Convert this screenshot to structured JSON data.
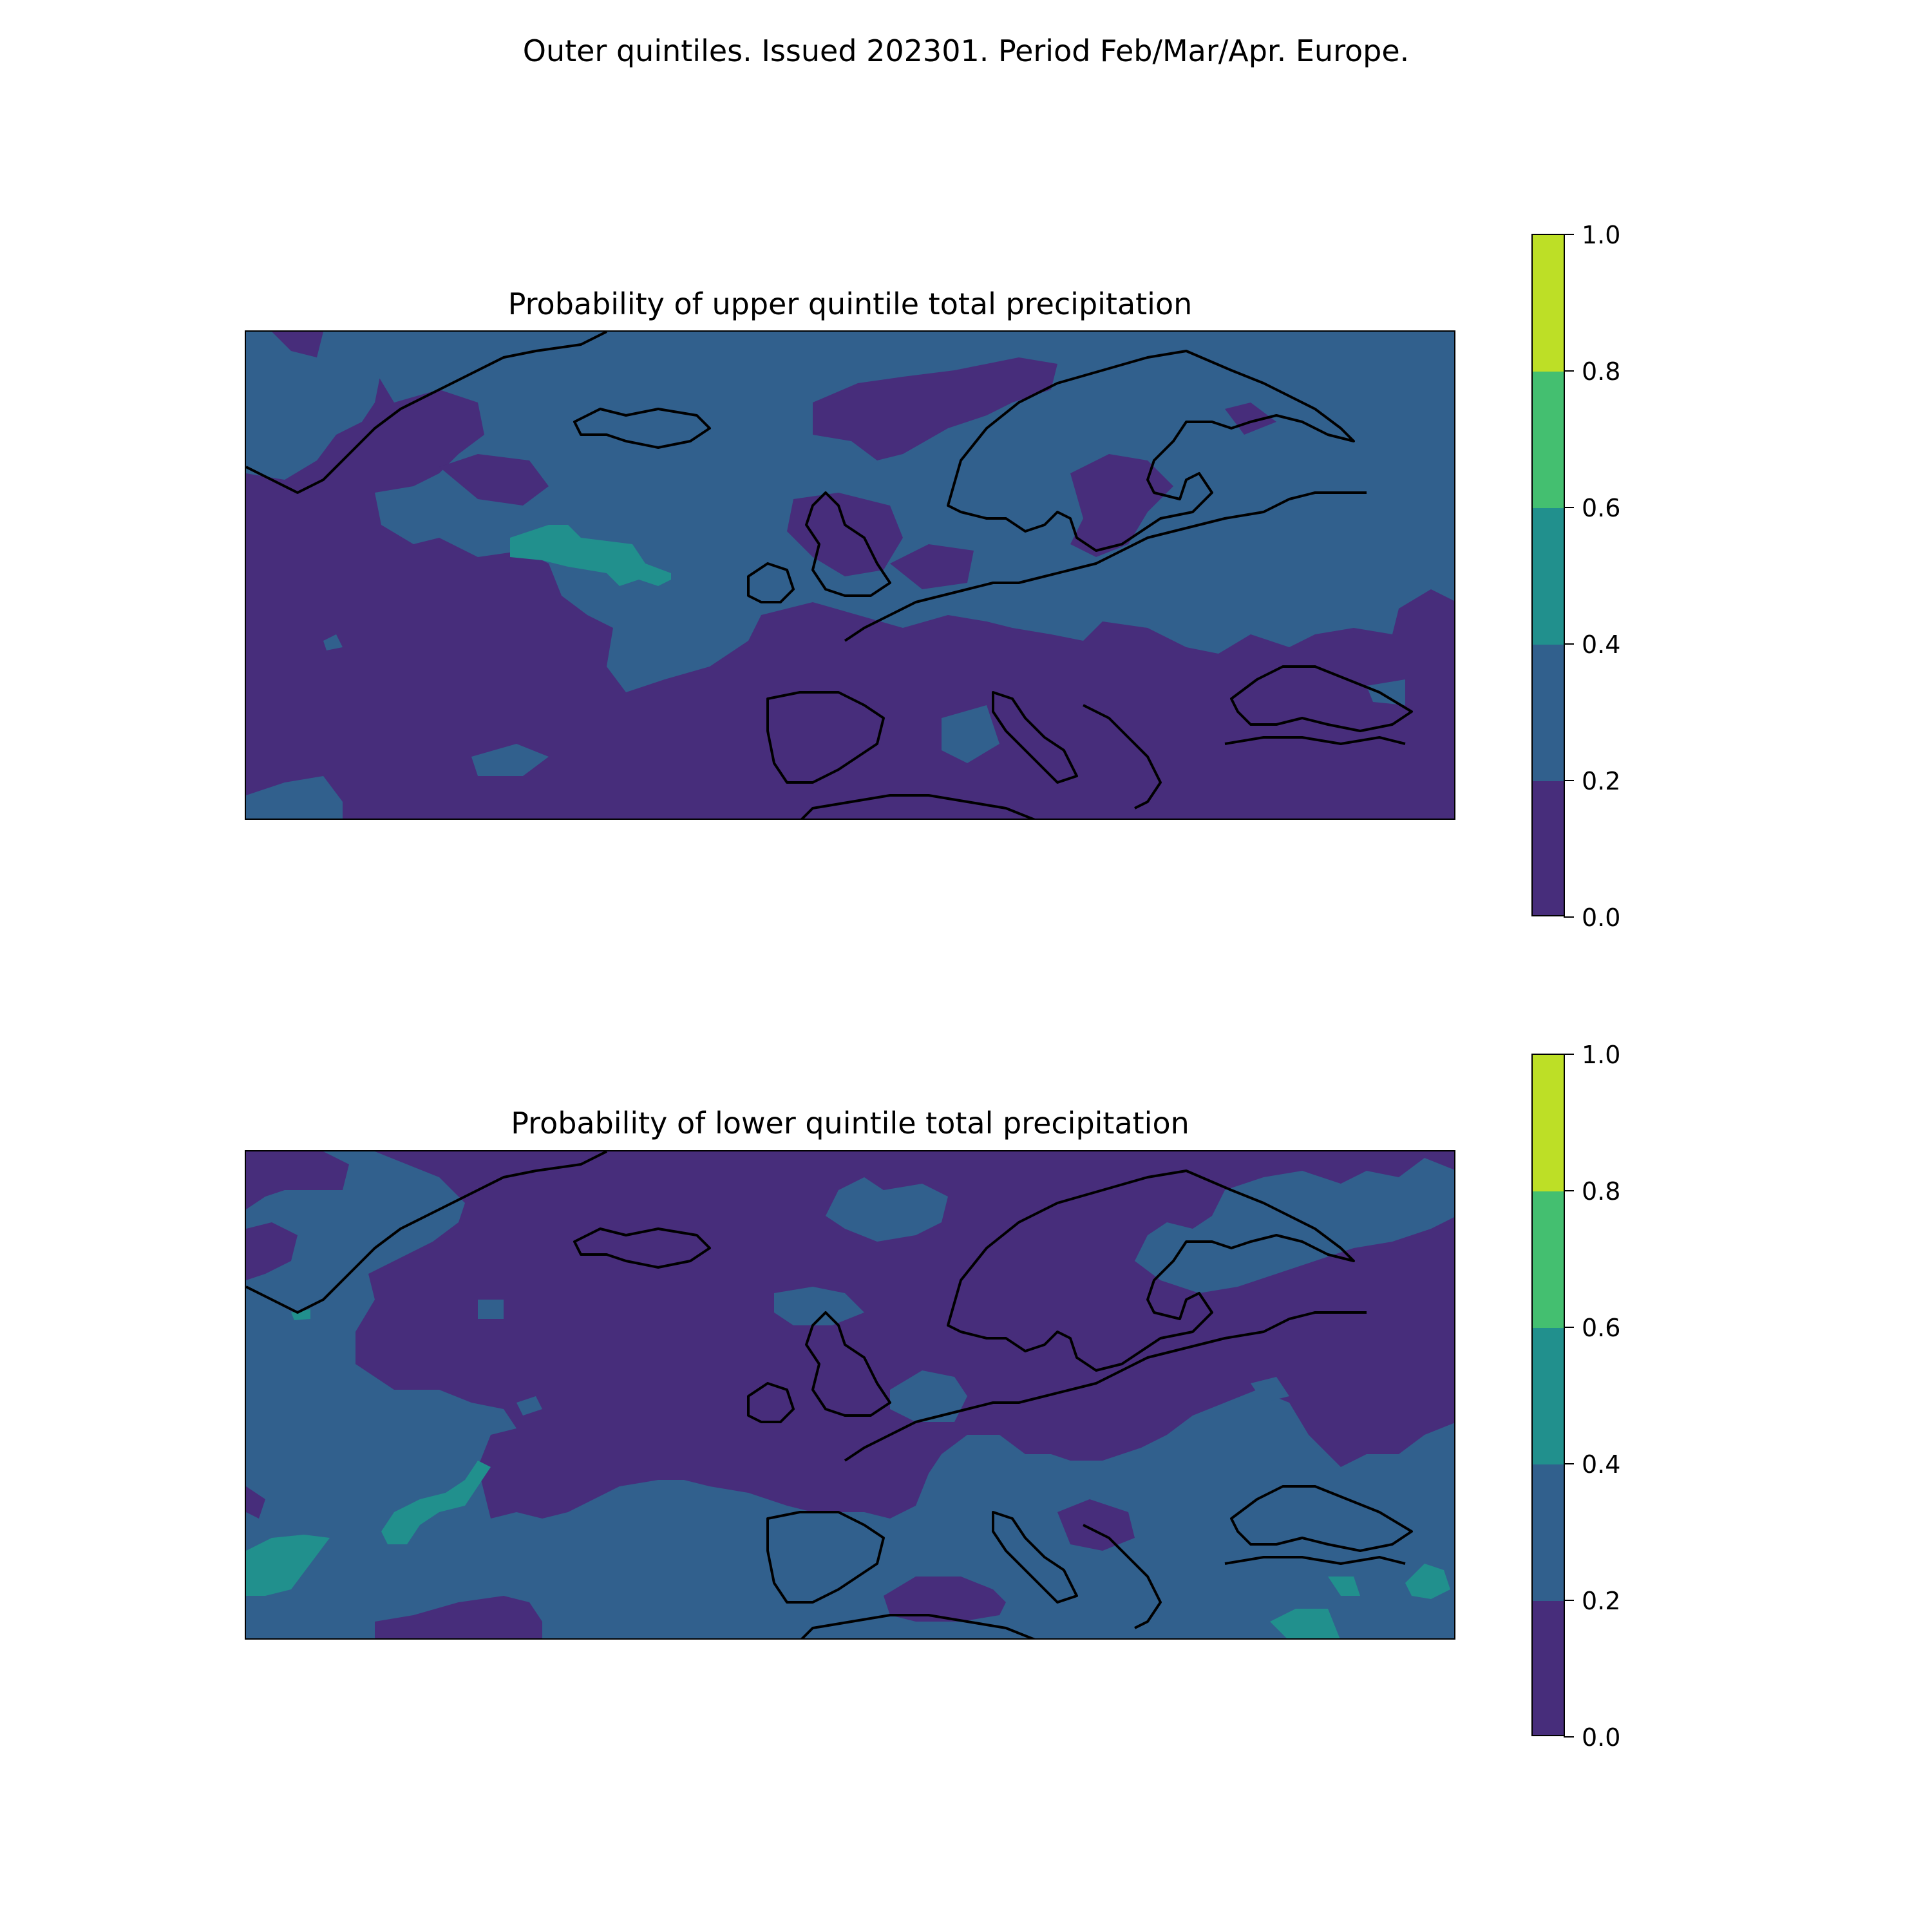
{
  "suptitle": "Outer quintiles. Issued 202301. Period Feb/Mar/Apr. Europe.",
  "colors": {
    "0.0-0.2": "#472d7b",
    "0.2-0.4": "#31608d",
    "0.4-0.6": "#21908d",
    "0.6-0.8": "#44bf70",
    "0.8-1.0": "#bddf26"
  },
  "colorbar": {
    "levels": [
      0.0,
      0.2,
      0.4,
      0.6,
      0.8,
      1.0
    ],
    "tick_labels": [
      "0.0",
      "0.2",
      "0.4",
      "0.6",
      "0.8",
      "1.0"
    ],
    "colors": [
      "#472d7b",
      "#31608d",
      "#21908d",
      "#44bf70",
      "#bddf26"
    ]
  },
  "panels": [
    {
      "title": "Probability of upper quintile total precipitation"
    },
    {
      "title": "Probability of lower quintile total precipitation"
    }
  ],
  "chart_data": [
    {
      "type": "heatmap",
      "title": "Probability of upper quintile total precipitation",
      "region": "Europe",
      "levels": [
        0.0,
        0.2,
        0.4,
        0.6,
        0.8,
        1.0
      ],
      "dominant_category": "0.0-0.2",
      "categories_present": [
        "0.0-0.2",
        "0.2-0.4",
        "0.4-0.6"
      ]
    },
    {
      "type": "heatmap",
      "title": "Probability of lower quintile total precipitation",
      "region": "Europe",
      "levels": [
        0.0,
        0.2,
        0.4,
        0.6,
        0.8,
        1.0
      ],
      "dominant_category": "0.0-0.2",
      "categories_present": [
        "0.0-0.2",
        "0.2-0.4",
        "0.4-0.6"
      ]
    }
  ]
}
